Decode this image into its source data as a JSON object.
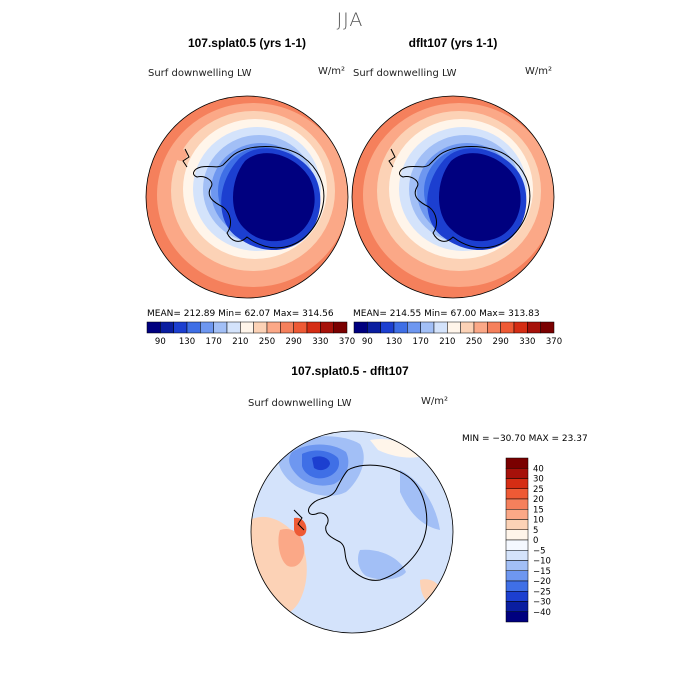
{
  "suptitle": "JJA",
  "colors": {
    "abs_scale": [
      "#00007f",
      "#0a1ea0",
      "#1c3fd0",
      "#3f6fe6",
      "#6e97f0",
      "#a2bff6",
      "#d4e3fb",
      "#fff5ea",
      "#fcd2b6",
      "#fba887",
      "#f5805c",
      "#ee5a35",
      "#d52d14",
      "#a6110a",
      "#7a0000"
    ],
    "diff_scale": [
      "#00007f",
      "#0a1ea0",
      "#1c3fd0",
      "#3f6fe6",
      "#6e97f0",
      "#a2bff6",
      "#d4e3fb",
      "#f4f8ff",
      "#fff5ea",
      "#fcd2b6",
      "#fba887",
      "#f5805c",
      "#ee5a35",
      "#d52d14",
      "#a6110a",
      "#7a0000"
    ]
  },
  "panels": [
    {
      "title": "107.splat0.5 (yrs 1-1)",
      "field": "Surf downwelling LW",
      "units": "W/m²",
      "stats_text": "MEAN= 212.89   Min=   62.07   Max= 314.56",
      "stats": {
        "mean": 212.89,
        "min": 62.07,
        "max": 314.56
      }
    },
    {
      "title": "dflt107 (yrs 1-1)",
      "field": "Surf downwelling LW",
      "units": "W/m²",
      "stats_text": "MEAN= 214.55   Min=   67.00   Max= 313.83",
      "stats": {
        "mean": 214.55,
        "min": 67.0,
        "max": 313.83
      }
    }
  ],
  "diff_panel": {
    "title": "107.splat0.5 - dflt107",
    "field": "Surf downwelling LW",
    "units": "W/m²",
    "minmax_text": "MIN = −30.70  MAX =  23.37",
    "stats": {
      "min": -30.7,
      "max": 23.37
    }
  },
  "chart_data": [
    {
      "type": "heatmap",
      "title": "107.splat0.5 (yrs 1-1)",
      "subtitle": "Surf downwelling LW",
      "units": "W/m²",
      "projection": "south-polar-stereographic",
      "colorbar": {
        "orientation": "horizontal",
        "tick_labels": [
          "90",
          "130",
          "170",
          "210",
          "250",
          "290",
          "330",
          "370"
        ]
      },
      "mean": 212.89,
      "min": 62.07,
      "max": 314.56
    },
    {
      "type": "heatmap",
      "title": "dflt107 (yrs 1-1)",
      "subtitle": "Surf downwelling LW",
      "units": "W/m²",
      "projection": "south-polar-stereographic",
      "colorbar": {
        "orientation": "horizontal",
        "tick_labels": [
          "90",
          "130",
          "170",
          "210",
          "250",
          "290",
          "330",
          "370"
        ]
      },
      "mean": 214.55,
      "min": 67.0,
      "max": 313.83
    },
    {
      "type": "heatmap",
      "title": "107.splat0.5 - dflt107",
      "subtitle": "Surf downwelling LW",
      "units": "W/m²",
      "projection": "south-polar-stereographic",
      "colorbar": {
        "orientation": "vertical",
        "tick_labels": [
          "40",
          "30",
          "25",
          "20",
          "15",
          "10",
          "5",
          "0",
          "−5",
          "−10",
          "−15",
          "−20",
          "−25",
          "−30",
          "−40"
        ]
      },
      "min": -30.7,
      "max": 23.37
    }
  ]
}
